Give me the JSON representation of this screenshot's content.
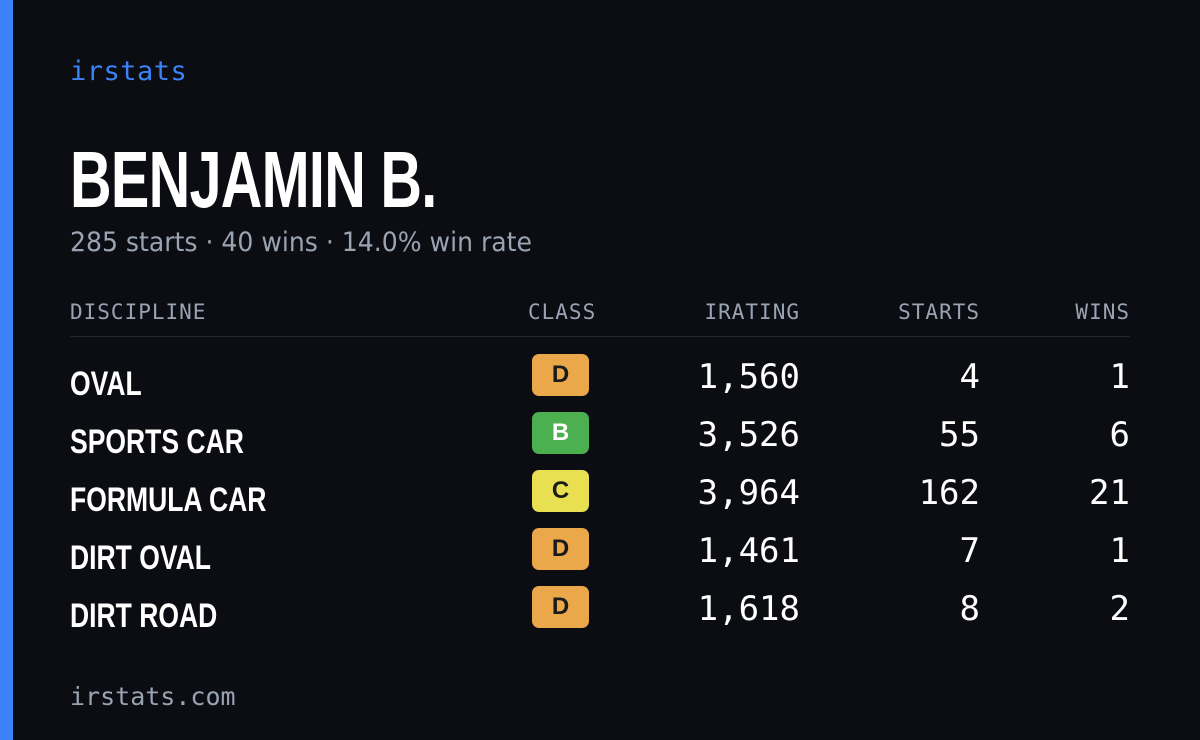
{
  "brand": "irstats",
  "driver": {
    "name": "BENJAMIN B.",
    "summary": "285 starts · 40 wins · 14.0% win rate"
  },
  "table": {
    "headers": {
      "discipline": "DISCIPLINE",
      "class": "CLASS",
      "irating": "IRATING",
      "starts": "STARTS",
      "wins": "WINS"
    },
    "rows": [
      {
        "discipline": "OVAL",
        "class": "D",
        "irating": "1,560",
        "starts": "4",
        "wins": "1"
      },
      {
        "discipline": "SPORTS CAR",
        "class": "B",
        "irating": "3,526",
        "starts": "55",
        "wins": "6"
      },
      {
        "discipline": "FORMULA CAR",
        "class": "C",
        "irating": "3,964",
        "starts": "162",
        "wins": "21"
      },
      {
        "discipline": "DIRT OVAL",
        "class": "D",
        "irating": "1,461",
        "starts": "7",
        "wins": "1"
      },
      {
        "discipline": "DIRT ROAD",
        "class": "D",
        "irating": "1,618",
        "starts": "8",
        "wins": "2"
      }
    ]
  },
  "class_colors": {
    "B": "#4caf50",
    "C": "#e8e050",
    "D": "#eba84a"
  },
  "accent_color": "#3b82f6",
  "footer": "irstats.com"
}
